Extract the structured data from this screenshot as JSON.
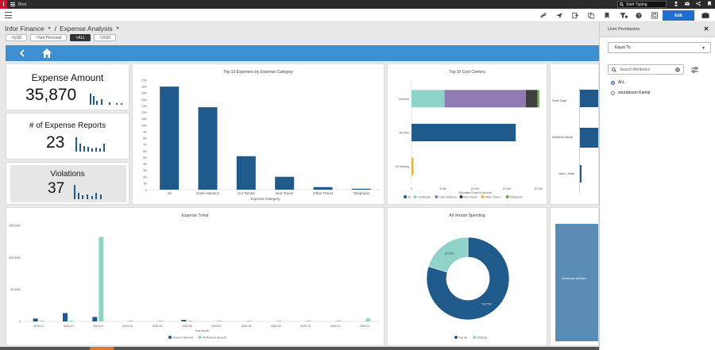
{
  "topbar": {
    "logo_letter": "i",
    "app_name": "Birst",
    "search_text": "Start Typing"
  },
  "toolbar": {
    "edit_label": "Edit"
  },
  "breadcrumb": {
    "space": "Infor Finance",
    "separator": "/",
    "dashboard": "Expense Analysis"
  },
  "filters": [
    "USD",
    "Not Personal",
    "ALL",
    "2020"
  ],
  "active_filter_index": 2,
  "kpis": [
    {
      "title": "Expense Amount",
      "value": "35,870"
    },
    {
      "title": "# of Expense Reports",
      "value": "23"
    },
    {
      "title": "Violations",
      "value": "37"
    }
  ],
  "colors": {
    "navy": "#1f5a8a",
    "teal": "#8fd3c8",
    "purple": "#8f7ab3",
    "blue_bar": "#3e8fcf",
    "accent": "#1f6fd0"
  },
  "chart_data": [
    {
      "type": "bar",
      "title": "Top 10 Expenses by Expense Category",
      "xlabel": "Expense Category",
      "ylabel": "",
      "categories": [
        "All",
        "Cash Advance",
        "Car Rental",
        "Non-Travel",
        "Other Travel",
        "Telephone"
      ],
      "values": [
        16000,
        12800,
        5200,
        2000,
        400,
        150
      ],
      "ylim": [
        0,
        17000
      ],
      "yticks": [
        "0",
        "1K",
        "2K",
        "3K",
        "4K",
        "5K",
        "6K",
        "7K",
        "8K",
        "9K",
        "10K",
        "11K",
        "12K",
        "13K",
        "14K",
        "15K",
        "16K",
        "17K"
      ]
    },
    {
      "type": "bar",
      "orientation": "horizontal",
      "stacked": true,
      "title": "Top 10 Cost Centers",
      "xlabel": "Allocation Rows in Amount",
      "categories": [
        "All Items",
        "All 0000",
        "Un Missing"
      ],
      "xticks": [
        "0",
        "5.00K",
        "10.00K",
        "15.00K",
        "20.00K"
      ],
      "xlim": [
        0,
        20000
      ],
      "series": [
        {
          "name": "All",
          "values": [
            0,
            16400,
            0
          ]
        },
        {
          "name": "Car Rental",
          "values": [
            5200,
            0,
            0
          ]
        },
        {
          "name": "Cash Advance",
          "values": [
            12800,
            0,
            0
          ]
        },
        {
          "name": "Non-Travel",
          "values": [
            1800,
            0,
            0
          ]
        },
        {
          "name": "Other Travel",
          "values": [
            0,
            0,
            300
          ]
        },
        {
          "name": "Telephone",
          "values": [
            300,
            0,
            0
          ]
        }
      ]
    },
    {
      "type": "bar",
      "title": "Expense Trend",
      "xlabel": "Year Month",
      "categories": [
        "2020-01",
        "2020-02",
        "2020-03",
        "2020-04",
        "2020-05",
        "2020-06",
        "2020-07",
        "2020-08",
        "2020-09",
        "2020-10",
        "2020-11",
        "2020-12"
      ],
      "yticks": [
        "0",
        "50.00K",
        "100.00K",
        "150.00K"
      ],
      "ylim": [
        0,
        150000
      ],
      "series": [
        {
          "name": "Rows in Amount",
          "values": [
            4500,
            13000,
            7000,
            0,
            0,
            2500,
            0,
            0,
            0,
            0,
            0,
            0
          ]
        },
        {
          "name": "All Rows in Amount",
          "values": [
            800,
            900,
            132000,
            600,
            500,
            600,
            700,
            500,
            600,
            500,
            900,
            4500
          ]
        }
      ]
    },
    {
      "type": "pie",
      "donut": true,
      "title": "All Vendor Spending",
      "labels": [
        "Top all",
        "Missing"
      ],
      "values": [
        79.77,
        20.23
      ],
      "slice_labels": [
        "79.77%",
        "20.23%"
      ]
    }
  ],
  "partial_chart": {
    "rows": [
      "Vivek Singh",
      "Sourbiom Kamal",
      "Jane L Smith"
    ],
    "tile_text": "American Airlines"
  },
  "panel": {
    "title": "User Permission",
    "operator": "Equal To",
    "search_placeholder": "Search Attributes",
    "options": [
      "ALL",
      "sourabsom Kamal"
    ],
    "selected_index": 0
  }
}
